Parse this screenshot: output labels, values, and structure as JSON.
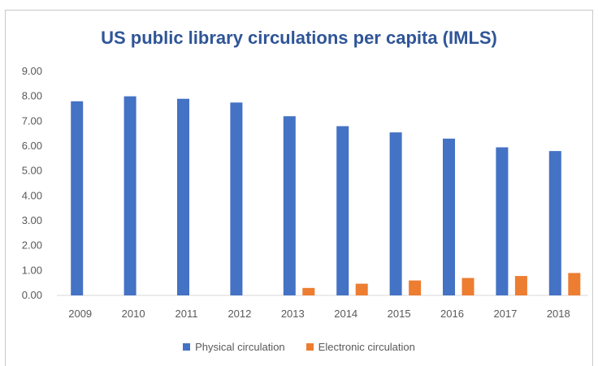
{
  "chart_data": {
    "type": "bar",
    "title": "US public library circulations per capita (IMLS)",
    "categories": [
      "2009",
      "2010",
      "2011",
      "2012",
      "2013",
      "2014",
      "2015",
      "2016",
      "2017",
      "2018"
    ],
    "series": [
      {
        "name": "Physical circulation",
        "color": "#4472c4",
        "values": [
          7.8,
          8.0,
          7.9,
          7.75,
          7.2,
          6.8,
          6.55,
          6.3,
          5.95,
          5.8
        ]
      },
      {
        "name": "Electronic circulation",
        "color": "#ed7d31",
        "values": [
          0,
          0,
          0,
          0,
          0.3,
          0.47,
          0.6,
          0.7,
          0.78,
          0.9
        ]
      }
    ],
    "ylim": [
      0,
      9
    ],
    "yticks": [
      "0.00",
      "1.00",
      "2.00",
      "3.00",
      "4.00",
      "5.00",
      "6.00",
      "7.00",
      "8.00",
      "9.00"
    ],
    "grid": false,
    "legend_position": "bottom"
  }
}
